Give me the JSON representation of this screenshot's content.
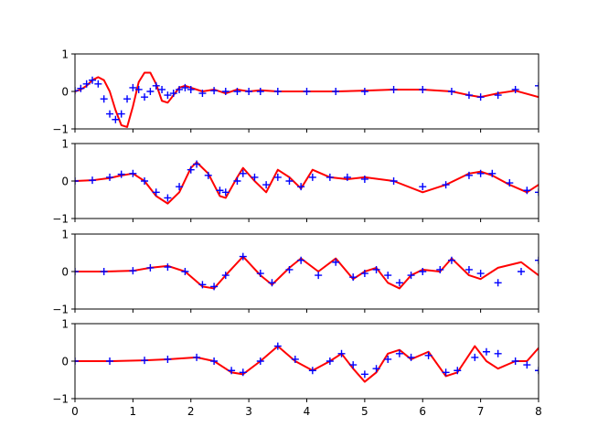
{
  "chart_data": [
    {
      "type": "line",
      "xlim": [
        0,
        8
      ],
      "ylim": [
        -1,
        1
      ],
      "yticks": [
        -1,
        0,
        1
      ],
      "ytick_labels": [
        "−1",
        "0",
        "1"
      ],
      "xticks": [
        0,
        1,
        2,
        3,
        4,
        5,
        6,
        7,
        8
      ],
      "xtick_labels": [],
      "grid": false,
      "series": [
        {
          "style": "line",
          "color": "#ff0000",
          "x": [
            0,
            0.1,
            0.2,
            0.3,
            0.4,
            0.5,
            0.6,
            0.7,
            0.8,
            0.9,
            1.0,
            1.1,
            1.2,
            1.3,
            1.4,
            1.5,
            1.6,
            1.7,
            1.8,
            1.9,
            2.0,
            2.2,
            2.4,
            2.6,
            2.8,
            3.0,
            3.2,
            3.5,
            4.0,
            4.5,
            5.0,
            5.5,
            6.0,
            6.5,
            6.8,
            7.0,
            7.3,
            7.6,
            8.0
          ],
          "y": [
            0,
            0.05,
            0.15,
            0.3,
            0.38,
            0.3,
            0.0,
            -0.5,
            -0.9,
            -0.95,
            -0.4,
            0.25,
            0.5,
            0.5,
            0.2,
            -0.25,
            -0.3,
            -0.1,
            0.1,
            0.15,
            0.1,
            0.0,
            0.05,
            -0.05,
            0.05,
            0.0,
            0.03,
            0.0,
            0.0,
            0.0,
            0.02,
            0.05,
            0.05,
            0.0,
            -0.1,
            -0.15,
            -0.05,
            0.02,
            -0.15
          ]
        },
        {
          "style": "plus",
          "color": "#0000ff",
          "x": [
            0,
            0.1,
            0.2,
            0.3,
            0.4,
            0.5,
            0.6,
            0.7,
            0.8,
            0.9,
            1.0,
            1.1,
            1.2,
            1.3,
            1.4,
            1.5,
            1.6,
            1.7,
            1.8,
            1.9,
            2.0,
            2.2,
            2.4,
            2.6,
            2.8,
            3.0,
            3.2,
            3.5,
            4.0,
            4.5,
            5.0,
            5.5,
            6.0,
            6.5,
            6.8,
            7.0,
            7.3,
            7.6,
            8.0
          ],
          "y": [
            0.02,
            0.08,
            0.2,
            0.3,
            0.2,
            -0.2,
            -0.6,
            -0.75,
            -0.6,
            -0.2,
            0.1,
            0.05,
            -0.15,
            0.0,
            0.15,
            0.05,
            -0.1,
            -0.05,
            0.05,
            0.1,
            0.05,
            -0.05,
            0.02,
            0.0,
            0.0,
            0.0,
            0.0,
            0.0,
            0.0,
            0.0,
            0.0,
            0.05,
            0.05,
            0.0,
            -0.1,
            -0.15,
            -0.1,
            0.05,
            0.15
          ]
        }
      ]
    },
    {
      "type": "line",
      "xlim": [
        0,
        8
      ],
      "ylim": [
        -1,
        1
      ],
      "yticks": [
        -1,
        0,
        1
      ],
      "ytick_labels": [
        "−1",
        "0",
        "1"
      ],
      "xticks": [
        0,
        1,
        2,
        3,
        4,
        5,
        6,
        7,
        8
      ],
      "xtick_labels": [],
      "grid": false,
      "series": [
        {
          "style": "line",
          "color": "#ff0000",
          "x": [
            0,
            0.3,
            0.6,
            0.8,
            1.0,
            1.2,
            1.4,
            1.6,
            1.8,
            2.0,
            2.1,
            2.3,
            2.5,
            2.6,
            2.8,
            2.9,
            3.1,
            3.3,
            3.5,
            3.7,
            3.9,
            4.1,
            4.4,
            4.7,
            5.0,
            5.5,
            6.0,
            6.4,
            6.8,
            7.0,
            7.2,
            7.5,
            7.8,
            8.0
          ],
          "y": [
            0,
            0.02,
            0.08,
            0.15,
            0.2,
            0.0,
            -0.4,
            -0.6,
            -0.3,
            0.35,
            0.5,
            0.2,
            -0.4,
            -0.45,
            0.1,
            0.35,
            0.0,
            -0.3,
            0.3,
            0.1,
            -0.2,
            0.3,
            0.1,
            0.05,
            0.1,
            0.0,
            -0.3,
            -0.1,
            0.2,
            0.25,
            0.15,
            -0.1,
            -0.3,
            -0.1
          ]
        },
        {
          "style": "plus",
          "color": "#0000ff",
          "x": [
            0,
            0.3,
            0.6,
            0.8,
            1.0,
            1.2,
            1.4,
            1.6,
            1.8,
            2.0,
            2.1,
            2.3,
            2.5,
            2.6,
            2.8,
            2.9,
            3.1,
            3.3,
            3.5,
            3.7,
            3.9,
            4.1,
            4.4,
            4.7,
            5.0,
            5.5,
            6.0,
            6.4,
            6.8,
            7.0,
            7.2,
            7.5,
            7.8,
            8.0
          ],
          "y": [
            0,
            0.02,
            0.1,
            0.18,
            0.2,
            0.0,
            -0.3,
            -0.45,
            -0.15,
            0.3,
            0.45,
            0.15,
            -0.25,
            -0.3,
            0.0,
            0.2,
            0.1,
            -0.1,
            0.1,
            0.0,
            -0.15,
            0.1,
            0.1,
            0.1,
            0.05,
            0.0,
            -0.15,
            -0.1,
            0.15,
            0.2,
            0.2,
            -0.05,
            -0.25,
            -0.3
          ]
        }
      ]
    },
    {
      "type": "line",
      "xlim": [
        0,
        8
      ],
      "ylim": [
        -1,
        1
      ],
      "yticks": [
        -1,
        0,
        1
      ],
      "ytick_labels": [
        "−1",
        "0",
        "1"
      ],
      "xticks": [
        0,
        1,
        2,
        3,
        4,
        5,
        6,
        7,
        8
      ],
      "xtick_labels": [],
      "grid": false,
      "series": [
        {
          "style": "line",
          "color": "#ff0000",
          "x": [
            0,
            0.5,
            1.0,
            1.3,
            1.6,
            1.9,
            2.2,
            2.4,
            2.6,
            2.9,
            3.2,
            3.4,
            3.7,
            3.9,
            4.2,
            4.5,
            4.8,
            5.0,
            5.2,
            5.4,
            5.6,
            5.8,
            6.0,
            6.3,
            6.5,
            6.8,
            7.0,
            7.3,
            7.7,
            8.0
          ],
          "y": [
            0,
            0.0,
            0.02,
            0.1,
            0.15,
            0.0,
            -0.4,
            -0.45,
            -0.1,
            0.4,
            -0.1,
            -0.35,
            0.1,
            0.35,
            0.0,
            0.35,
            -0.2,
            0.0,
            0.1,
            -0.3,
            -0.45,
            -0.1,
            0.05,
            0.0,
            0.35,
            -0.1,
            -0.2,
            0.1,
            0.25,
            -0.1
          ]
        },
        {
          "style": "plus",
          "color": "#0000ff",
          "x": [
            0,
            0.5,
            1.0,
            1.3,
            1.6,
            1.9,
            2.2,
            2.4,
            2.6,
            2.9,
            3.2,
            3.4,
            3.7,
            3.9,
            4.2,
            4.5,
            4.8,
            5.0,
            5.2,
            5.4,
            5.6,
            5.8,
            6.0,
            6.3,
            6.5,
            6.8,
            7.0,
            7.3,
            7.7,
            8.0
          ],
          "y": [
            0,
            0.0,
            0.02,
            0.1,
            0.12,
            0.0,
            -0.35,
            -0.4,
            -0.1,
            0.4,
            -0.05,
            -0.3,
            0.05,
            0.3,
            -0.1,
            0.25,
            -0.15,
            -0.05,
            0.05,
            -0.1,
            -0.3,
            -0.1,
            0.0,
            0.05,
            0.3,
            0.05,
            -0.05,
            -0.3,
            0.0,
            0.3
          ]
        }
      ]
    },
    {
      "type": "line",
      "xlim": [
        0,
        8
      ],
      "ylim": [
        -1,
        1
      ],
      "yticks": [
        -1,
        0,
        1
      ],
      "ytick_labels": [
        "−1",
        "0",
        "1"
      ],
      "xticks": [
        0,
        1,
        2,
        3,
        4,
        5,
        6,
        7,
        8
      ],
      "xtick_labels": [
        "0",
        "1",
        "2",
        "3",
        "4",
        "5",
        "6",
        "7",
        "8"
      ],
      "grid": false,
      "series": [
        {
          "style": "line",
          "color": "#ff0000",
          "x": [
            0,
            0.6,
            1.2,
            1.6,
            2.1,
            2.4,
            2.7,
            2.9,
            3.2,
            3.5,
            3.8,
            4.1,
            4.4,
            4.6,
            4.8,
            5.0,
            5.2,
            5.4,
            5.6,
            5.8,
            6.1,
            6.4,
            6.6,
            6.9,
            7.1,
            7.3,
            7.6,
            7.8,
            8.0
          ],
          "y": [
            0,
            0.0,
            0.02,
            0.05,
            0.1,
            0.0,
            -0.3,
            -0.35,
            0.0,
            0.4,
            0.0,
            -0.25,
            0.0,
            0.2,
            -0.2,
            -0.55,
            -0.3,
            0.2,
            0.3,
            0.05,
            0.25,
            -0.4,
            -0.3,
            0.4,
            0.0,
            -0.2,
            0.0,
            0.0,
            0.35
          ]
        },
        {
          "style": "plus",
          "color": "#0000ff",
          "x": [
            0,
            0.6,
            1.2,
            1.6,
            2.1,
            2.4,
            2.7,
            2.9,
            3.2,
            3.5,
            3.8,
            4.1,
            4.4,
            4.6,
            4.8,
            5.0,
            5.2,
            5.4,
            5.6,
            5.8,
            6.1,
            6.4,
            6.6,
            6.9,
            7.1,
            7.3,
            7.6,
            7.8,
            8.0
          ],
          "y": [
            0,
            0.0,
            0.02,
            0.05,
            0.1,
            0.0,
            -0.25,
            -0.3,
            0.0,
            0.4,
            0.05,
            -0.25,
            0.0,
            0.2,
            -0.1,
            -0.35,
            -0.2,
            0.05,
            0.2,
            0.1,
            0.15,
            -0.3,
            -0.25,
            0.1,
            0.25,
            0.2,
            0.0,
            -0.1,
            -0.25
          ]
        }
      ]
    }
  ]
}
